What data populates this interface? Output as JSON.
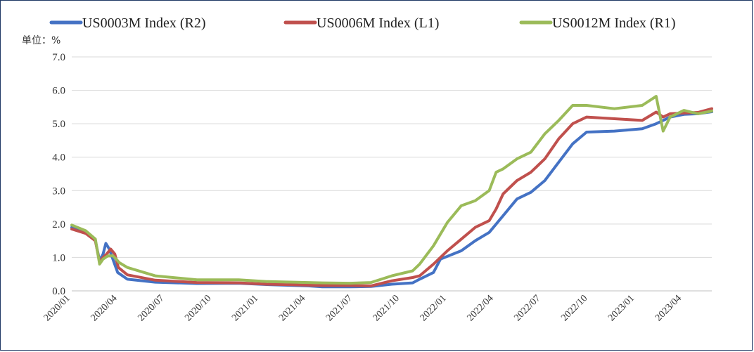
{
  "chart_data": {
    "type": "line",
    "title": "",
    "unit_label": "单位：%",
    "xlabel": "",
    "ylabel": "",
    "ylim": [
      0,
      7
    ],
    "y_ticks": [
      "0.0",
      "1.0",
      "2.0",
      "3.0",
      "4.0",
      "5.0",
      "6.0",
      "7.0"
    ],
    "x_ticks": [
      "2020/01",
      "2020/04",
      "2020/07",
      "2020/10",
      "2021/01",
      "2021/04",
      "2021/07",
      "2021/10",
      "2022/01",
      "2022/04",
      "2022/07",
      "2022/10",
      "2023/01",
      "2023/04"
    ],
    "grid": true,
    "legend_position": "top",
    "series": [
      {
        "name": "US0003M Index  (R2)",
        "color": "#4472c4",
        "points": [
          [
            0,
            1.9
          ],
          [
            1,
            1.75
          ],
          [
            1.7,
            1.5
          ],
          [
            2.0,
            0.9
          ],
          [
            2.25,
            1.1
          ],
          [
            2.45,
            1.42
          ],
          [
            2.7,
            1.25
          ],
          [
            3.0,
            0.9
          ],
          [
            3.3,
            0.55
          ],
          [
            4,
            0.35
          ],
          [
            6,
            0.26
          ],
          [
            9,
            0.22
          ],
          [
            12,
            0.23
          ],
          [
            14,
            0.19
          ],
          [
            17,
            0.15
          ],
          [
            18,
            0.12
          ],
          [
            20,
            0.12
          ],
          [
            21.5,
            0.13
          ],
          [
            23,
            0.2
          ],
          [
            24.5,
            0.24
          ],
          [
            25,
            0.35
          ],
          [
            26,
            0.55
          ],
          [
            26.5,
            0.95
          ],
          [
            28,
            1.2
          ],
          [
            29,
            1.5
          ],
          [
            30,
            1.75
          ],
          [
            31,
            2.25
          ],
          [
            32,
            2.75
          ],
          [
            33,
            2.95
          ],
          [
            34,
            3.3
          ],
          [
            35,
            3.85
          ],
          [
            36,
            4.4
          ],
          [
            37,
            4.75
          ],
          [
            39,
            4.78
          ],
          [
            41,
            4.85
          ],
          [
            42,
            5.0
          ],
          [
            42.5,
            5.1
          ],
          [
            43,
            5.2
          ],
          [
            44,
            5.28
          ],
          [
            45,
            5.3
          ],
          [
            46,
            5.36
          ]
        ]
      },
      {
        "name": "US0006M Index  (L1)",
        "color": "#c0504d",
        "points": [
          [
            0,
            1.85
          ],
          [
            1,
            1.72
          ],
          [
            1.7,
            1.5
          ],
          [
            2.0,
            0.85
          ],
          [
            2.25,
            1.0
          ],
          [
            2.5,
            1.1
          ],
          [
            2.8,
            1.25
          ],
          [
            3.1,
            1.1
          ],
          [
            3.35,
            0.7
          ],
          [
            4,
            0.48
          ],
          [
            6,
            0.32
          ],
          [
            9,
            0.25
          ],
          [
            12,
            0.24
          ],
          [
            14,
            0.2
          ],
          [
            17,
            0.17
          ],
          [
            18,
            0.16
          ],
          [
            20,
            0.16
          ],
          [
            21.5,
            0.15
          ],
          [
            23,
            0.3
          ],
          [
            24.5,
            0.4
          ],
          [
            25,
            0.45
          ],
          [
            26,
            0.8
          ],
          [
            27,
            1.2
          ],
          [
            28,
            1.55
          ],
          [
            29,
            1.9
          ],
          [
            30,
            2.1
          ],
          [
            30.5,
            2.45
          ],
          [
            31,
            2.9
          ],
          [
            32,
            3.3
          ],
          [
            33,
            3.55
          ],
          [
            34,
            3.95
          ],
          [
            35,
            4.55
          ],
          [
            36,
            5.0
          ],
          [
            37,
            5.2
          ],
          [
            39,
            5.15
          ],
          [
            41,
            5.1
          ],
          [
            42,
            5.35
          ],
          [
            42.5,
            5.2
          ],
          [
            43,
            5.3
          ],
          [
            44,
            5.32
          ],
          [
            45,
            5.34
          ],
          [
            46,
            5.45
          ]
        ]
      },
      {
        "name": "US0012M Index  (R1)",
        "color": "#9bbb59",
        "points": [
          [
            0,
            1.97
          ],
          [
            1,
            1.8
          ],
          [
            1.7,
            1.55
          ],
          [
            2.0,
            0.8
          ],
          [
            2.25,
            0.95
          ],
          [
            2.6,
            1.05
          ],
          [
            2.95,
            1.05
          ],
          [
            3.2,
            0.95
          ],
          [
            3.4,
            0.85
          ],
          [
            4,
            0.7
          ],
          [
            6,
            0.45
          ],
          [
            9,
            0.33
          ],
          [
            12,
            0.33
          ],
          [
            14,
            0.28
          ],
          [
            17,
            0.25
          ],
          [
            18,
            0.24
          ],
          [
            20,
            0.23
          ],
          [
            21.5,
            0.25
          ],
          [
            23,
            0.45
          ],
          [
            24.5,
            0.6
          ],
          [
            25,
            0.8
          ],
          [
            26,
            1.35
          ],
          [
            27,
            2.05
          ],
          [
            28,
            2.55
          ],
          [
            29,
            2.7
          ],
          [
            30,
            3.0
          ],
          [
            30.5,
            3.55
          ],
          [
            31,
            3.65
          ],
          [
            32,
            3.95
          ],
          [
            33,
            4.15
          ],
          [
            34,
            4.7
          ],
          [
            35,
            5.1
          ],
          [
            36,
            5.55
          ],
          [
            37,
            5.55
          ],
          [
            39,
            5.45
          ],
          [
            41,
            5.55
          ],
          [
            42,
            5.82
          ],
          [
            42.5,
            4.78
          ],
          [
            43,
            5.2
          ],
          [
            44,
            5.4
          ],
          [
            45,
            5.3
          ],
          [
            46,
            5.38
          ]
        ]
      }
    ]
  }
}
